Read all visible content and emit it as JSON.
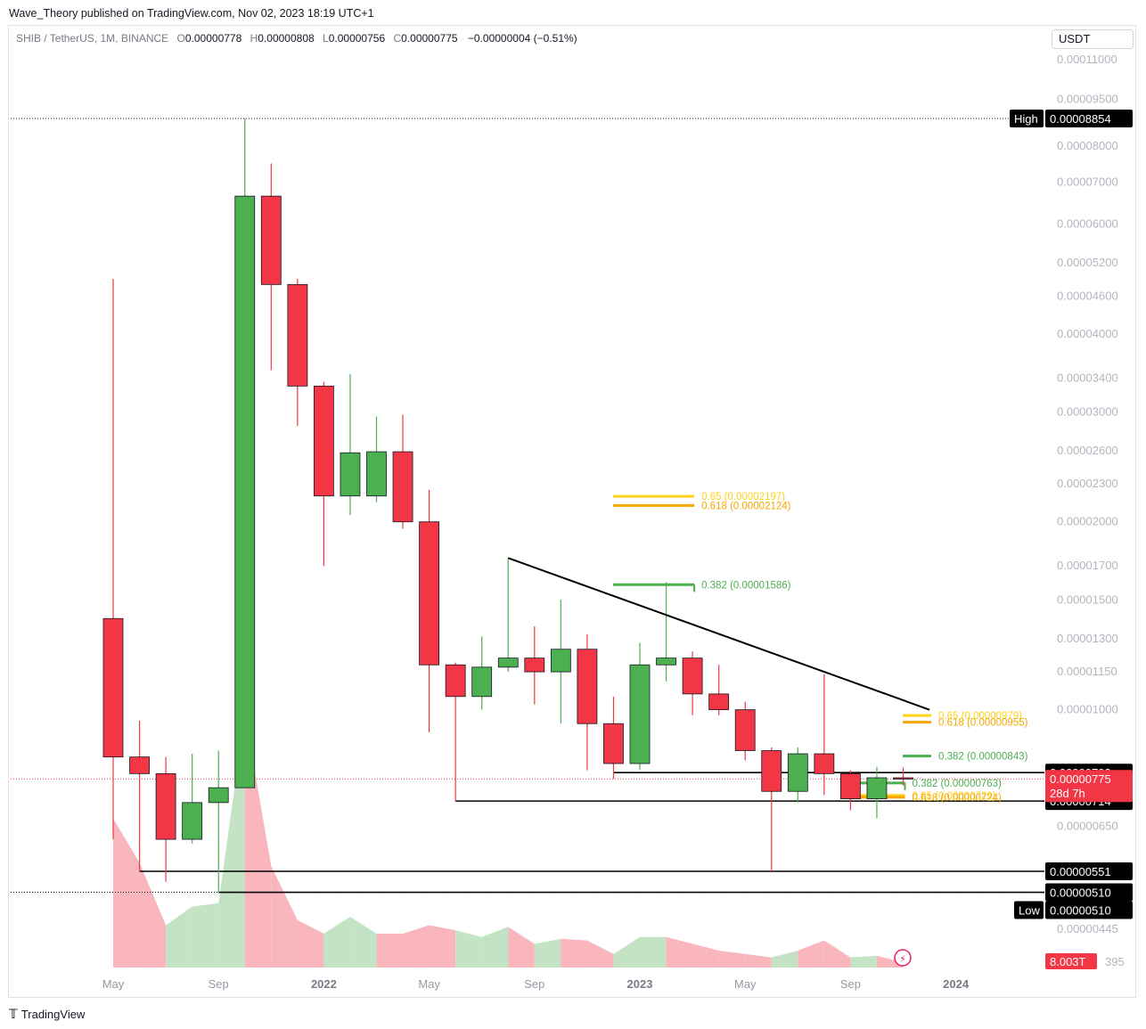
{
  "header": {
    "publisher": "Wave_Theory published on TradingView.com, Nov 02, 2023 18:19 UTC+1",
    "symbol": "SHIB / TetherUS, 1M, BINANCE",
    "open_label": "O",
    "open": "0.00000778",
    "high_label": "H",
    "high": "0.00000808",
    "low_label": "L",
    "low": "0.00000756",
    "close_label": "C",
    "close": "0.00000775",
    "change": "−0.00000004 (−0.51%)",
    "currency": "USDT"
  },
  "footer": {
    "brand": "TradingView"
  },
  "colors": {
    "up": "#4caf50",
    "down": "#f23645",
    "up_volume": "#c3e3c4",
    "down_volume": "#f9b6bd",
    "fib_green": "#4caf50",
    "fib_orange": "#f7a600",
    "fib_yellow": "#ffe03b",
    "line": "#000000"
  },
  "chart_data": {
    "type": "candlestick",
    "scale": "log",
    "price_unit": "USDT",
    "ylim": [
      4e-06,
      0.000115
    ],
    "y_ticks": [
      "0.00011000",
      "0.00009500",
      "0.00008000",
      "0.00007000",
      "0.00006000",
      "0.00005200",
      "0.00004600",
      "0.00004000",
      "0.00003400",
      "0.00003000",
      "0.00002600",
      "0.00002300",
      "0.00002000",
      "0.00001700",
      "0.00001500",
      "0.00001300",
      "0.00001150",
      "0.00001000",
      "0.00000650",
      "0.00000445"
    ],
    "x_ticks": [
      {
        "label": "May",
        "date": "2021-05"
      },
      {
        "label": "Sep",
        "date": "2021-09"
      },
      {
        "label": "2022",
        "date": "2022-01",
        "bold": true
      },
      {
        "label": "May",
        "date": "2022-05"
      },
      {
        "label": "Sep",
        "date": "2022-09"
      },
      {
        "label": "2023",
        "date": "2023-01",
        "bold": true
      },
      {
        "label": "May",
        "date": "2023-05"
      },
      {
        "label": "Sep",
        "date": "2023-09"
      },
      {
        "label": "2024",
        "date": "2024-01",
        "bold": true
      }
    ],
    "candles": [
      {
        "date": "2021-05",
        "o": 1.4e-05,
        "h": 4.9e-05,
        "l": 6.2e-06,
        "c": 8.4e-06,
        "vol": 0.88
      },
      {
        "date": "2021-06",
        "o": 8.4e-06,
        "h": 9.6e-06,
        "l": 5.51e-06,
        "c": 7.9e-06,
        "vol": 0.62
      },
      {
        "date": "2021-07",
        "o": 7.9e-06,
        "h": 8.4e-06,
        "l": 5.3e-06,
        "c": 6.2e-06,
        "vol": 0.25
      },
      {
        "date": "2021-08",
        "o": 6.2e-06,
        "h": 8.5e-06,
        "l": 6.1e-06,
        "c": 7.1e-06,
        "vol": 0.36
      },
      {
        "date": "2021-09",
        "o": 7.1e-06,
        "h": 8.6e-06,
        "l": 5.1e-06,
        "c": 7.5e-06,
        "vol": 0.38
      },
      {
        "date": "2021-10",
        "o": 7.5e-06,
        "h": 8.854e-05,
        "l": 7.5e-06,
        "c": 6.65e-05,
        "vol": 1.5
      },
      {
        "date": "2021-11",
        "o": 6.65e-05,
        "h": 7.5e-05,
        "l": 3.5e-05,
        "c": 4.8e-05,
        "vol": 0.6
      },
      {
        "date": "2021-12",
        "o": 4.8e-05,
        "h": 4.9e-05,
        "l": 2.85e-05,
        "c": 3.3e-05,
        "vol": 0.28
      },
      {
        "date": "2022-01",
        "o": 3.3e-05,
        "h": 3.35e-05,
        "l": 1.7e-05,
        "c": 2.2e-05,
        "vol": 0.2
      },
      {
        "date": "2022-02",
        "o": 2.2e-05,
        "h": 3.45e-05,
        "l": 2.05e-05,
        "c": 2.58e-05,
        "vol": 0.3
      },
      {
        "date": "2022-03",
        "o": 2.2e-05,
        "h": 2.95e-05,
        "l": 2.15e-05,
        "c": 2.59e-05,
        "vol": 0.2
      },
      {
        "date": "2022-04",
        "o": 2.59e-05,
        "h": 2.97e-05,
        "l": 1.95e-05,
        "c": 2e-05,
        "vol": 0.2
      },
      {
        "date": "2022-05",
        "o": 2e-05,
        "h": 2.25e-05,
        "l": 9.2e-06,
        "c": 1.18e-05,
        "vol": 0.25
      },
      {
        "date": "2022-06",
        "o": 1.18e-05,
        "h": 1.19e-05,
        "l": 7.14e-06,
        "c": 1.05e-05,
        "vol": 0.22
      },
      {
        "date": "2022-07",
        "o": 1.05e-05,
        "h": 1.31e-05,
        "l": 1e-05,
        "c": 1.17e-05,
        "vol": 0.18
      },
      {
        "date": "2022-08",
        "o": 1.17e-05,
        "h": 1.75e-05,
        "l": 1.15e-05,
        "c": 1.21e-05,
        "vol": 0.24
      },
      {
        "date": "2022-09",
        "o": 1.21e-05,
        "h": 1.36e-05,
        "l": 1.02e-05,
        "c": 1.15e-05,
        "vol": 0.14
      },
      {
        "date": "2022-10",
        "o": 1.15e-05,
        "h": 1.5e-05,
        "l": 9.5e-06,
        "c": 1.25e-05,
        "vol": 0.17
      },
      {
        "date": "2022-11",
        "o": 1.25e-05,
        "h": 1.32e-05,
        "l": 8e-06,
        "c": 9.5e-06,
        "vol": 0.16
      },
      {
        "date": "2022-12",
        "o": 9.5e-06,
        "h": 1.05e-05,
        "l": 7.75e-06,
        "c": 8.2e-06,
        "vol": 0.08
      },
      {
        "date": "2023-01",
        "o": 8.2e-06,
        "h": 1.28e-05,
        "l": 8e-06,
        "c": 1.18e-05,
        "vol": 0.18
      },
      {
        "date": "2023-02",
        "o": 1.18e-05,
        "h": 1.6e-05,
        "l": 1.11e-05,
        "c": 1.21e-05,
        "vol": 0.18
      },
      {
        "date": "2023-03",
        "o": 1.21e-05,
        "h": 1.24e-05,
        "l": 9.8e-06,
        "c": 1.06e-05,
        "vol": 0.14
      },
      {
        "date": "2023-04",
        "o": 1.06e-05,
        "h": 1.18e-05,
        "l": 9.8e-06,
        "c": 1e-05,
        "vol": 0.1
      },
      {
        "date": "2023-05",
        "o": 1e-05,
        "h": 1.03e-05,
        "l": 8.3e-06,
        "c": 8.6e-06,
        "vol": 0.08
      },
      {
        "date": "2023-06",
        "o": 8.6e-06,
        "h": 8.7e-06,
        "l": 5.51e-06,
        "c": 7.4e-06,
        "vol": 0.06
      },
      {
        "date": "2023-07",
        "o": 7.4e-06,
        "h": 8.7e-06,
        "l": 7.1e-06,
        "c": 8.5e-06,
        "vol": 0.1
      },
      {
        "date": "2023-08",
        "o": 8.5e-06,
        "h": 1.14e-05,
        "l": 7.3e-06,
        "c": 7.9e-06,
        "vol": 0.16
      },
      {
        "date": "2023-09",
        "o": 7.9e-06,
        "h": 8e-06,
        "l": 6.9e-06,
        "c": 7.2e-06,
        "vol": 0.06
      },
      {
        "date": "2023-10",
        "o": 7.2e-06,
        "h": 8.1e-06,
        "l": 6.7e-06,
        "c": 7.78e-06,
        "vol": 0.07
      },
      {
        "date": "2023-11",
        "o": 7.78e-06,
        "h": 8.08e-06,
        "l": 7.56e-06,
        "c": 7.75e-06,
        "vol": 0.03
      }
    ],
    "horizontal_lines": [
      {
        "price": 7.93e-06,
        "from": "2022-12",
        "label": "0.00000793",
        "style": "solid"
      },
      {
        "price": 7.14e-06,
        "from": "2022-06",
        "label": "0.00000714",
        "style": "solid"
      },
      {
        "price": 5.51e-06,
        "from": "2021-06",
        "label": "0.00000551",
        "style": "solid"
      },
      {
        "price": 5.1e-06,
        "from": "2021-09",
        "label": "0.00000510",
        "style": "solid"
      }
    ],
    "high_marker": {
      "label": "High",
      "price": 8.854e-05,
      "value": "0.00008854"
    },
    "low_marker": {
      "label": "Low",
      "price": 5.1e-06,
      "value": "0.00000510"
    },
    "last_price": {
      "value": "0.00000775",
      "price": 7.75e-06,
      "countdown": "28d 7h"
    },
    "trendline": {
      "from": {
        "date": "2022-08",
        "price": 1.75e-05
      },
      "to": {
        "date": "2023-12",
        "price": 1e-05
      }
    },
    "fib_levels": [
      {
        "text": "0.65 (0.00002197)",
        "price": 2.197e-05,
        "color": "#ffd31a",
        "date_from": "2023-01",
        "date_to": "2023-03"
      },
      {
        "text": "0.618 (0.00002124)",
        "price": 2.124e-05,
        "color": "#f7a600",
        "date_from": "2023-01",
        "date_to": "2023-03"
      },
      {
        "text": "0.382 (0.00001586)",
        "price": 1.586e-05,
        "color": "#4caf50",
        "date_from": "2023-01",
        "date_to": "2023-03"
      },
      {
        "text": "0.65 (0.00000979)",
        "price": 9.79e-06,
        "color": "#ffd31a",
        "date_from": "2023-12",
        "date_to": "2023-12"
      },
      {
        "text": "0.618 (0.00000955)",
        "price": 9.55e-06,
        "color": "#f7a600",
        "date_from": "2023-12",
        "date_to": "2023-12"
      },
      {
        "text": "0.382 (0.00000843)",
        "price": 8.43e-06,
        "color": "#4caf50",
        "date_from": "2023-12",
        "date_to": "2023-12"
      },
      {
        "text": "0.382 (0.00000763)",
        "price": 7.63e-06,
        "color": "#4caf50",
        "date_from": "2023-10",
        "date_to": "2023-11"
      },
      {
        "text": "0.65 (0.00000729)",
        "price": 7.29e-06,
        "color": "#ffd31a",
        "date_from": "2023-10",
        "date_to": "2023-11"
      },
      {
        "text": "0.618 (0.00000724)",
        "price": 7.24e-06,
        "color": "#f7a600",
        "date_from": "2023-10",
        "date_to": "2023-11"
      }
    ],
    "volume_label": "8.003T",
    "volume_axis_tick": "395"
  }
}
